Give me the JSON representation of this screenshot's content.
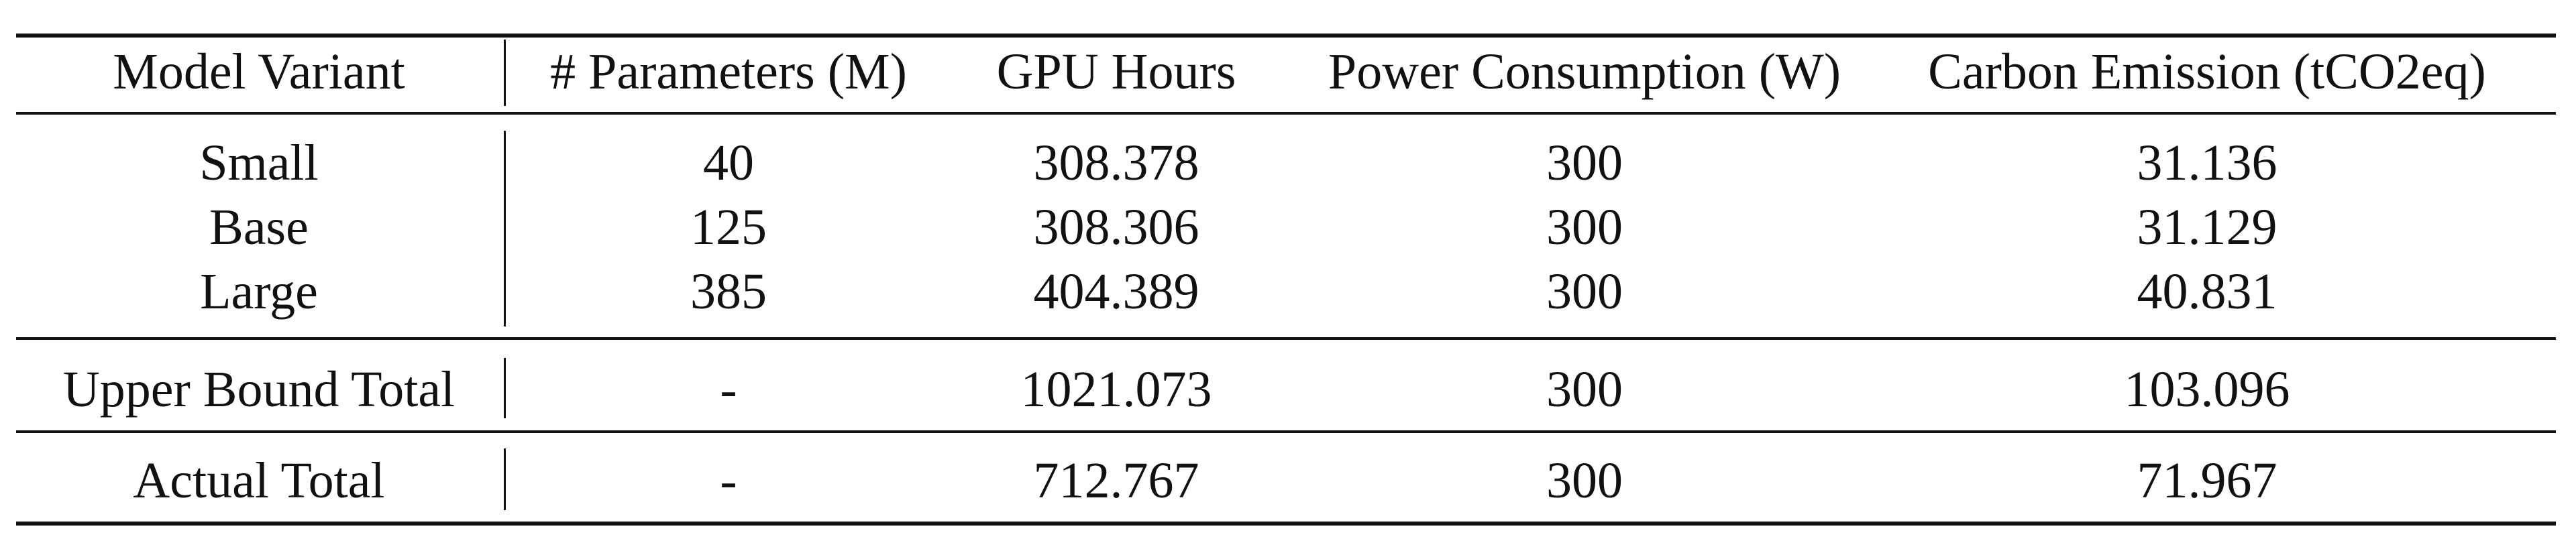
{
  "table": {
    "headers": [
      "Model Variant",
      "# Parameters (M)",
      "GPU Hours",
      "Power Consumption (W)",
      "Carbon Emission (tCO2eq)"
    ],
    "body_rows": [
      [
        "Small",
        "40",
        "308.378",
        "300",
        "31.136"
      ],
      [
        "Base",
        "125",
        "308.306",
        "300",
        "31.129"
      ],
      [
        "Large",
        "385",
        "404.389",
        "300",
        "40.831"
      ]
    ],
    "upper_bound_row": [
      "Upper Bound Total",
      "-",
      "1021.073",
      "300",
      "103.096"
    ],
    "actual_row": [
      "Actual Total",
      "-",
      "712.767",
      "300",
      "71.967"
    ]
  }
}
